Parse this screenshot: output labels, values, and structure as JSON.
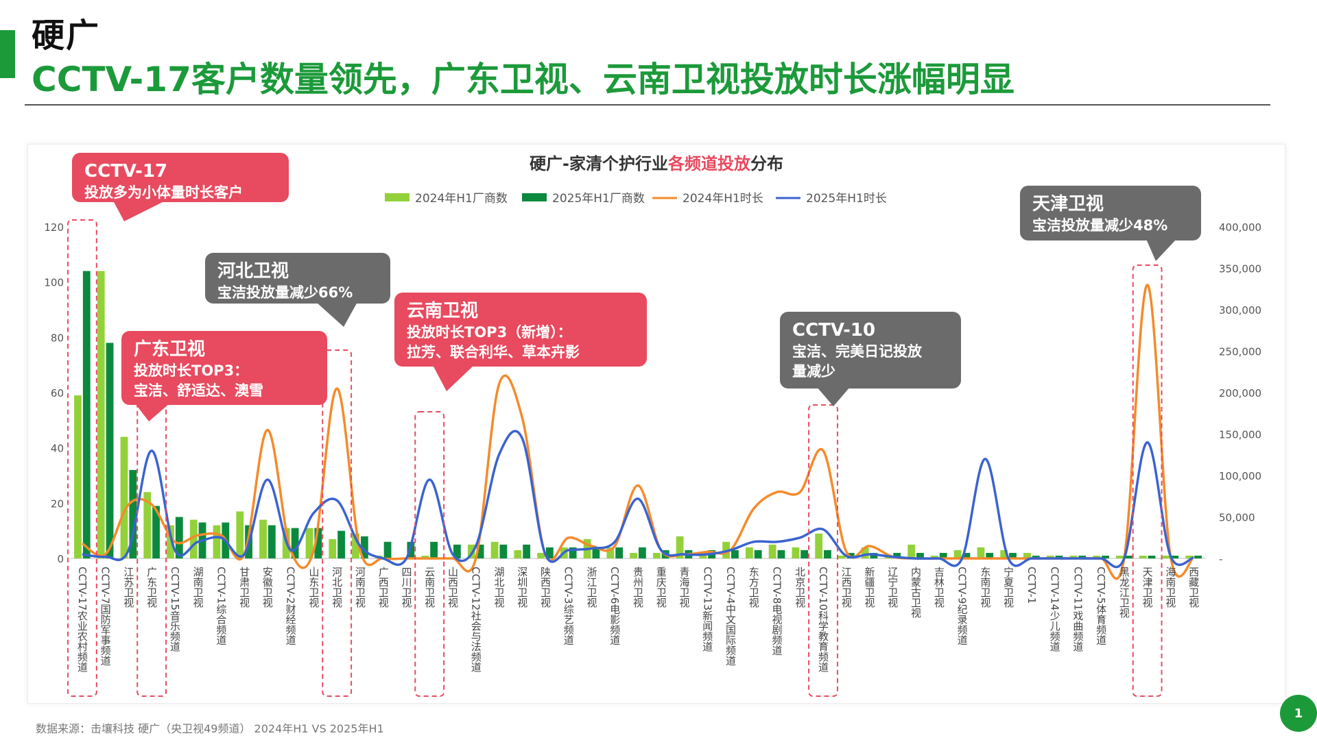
{
  "header": {
    "kicker": "硬广",
    "title": "CCTV-17客户数量领先，广东卫视、云南卫视投放时长涨幅明显"
  },
  "chart_data": {
    "type": "bar",
    "title_parts": [
      "硬广-家清个护行业",
      "各频道投放",
      "分布"
    ],
    "legend": [
      "2024年H1厂商数",
      "2025年H1厂商数",
      "2024年H1时长",
      "2025年H1时长"
    ],
    "colors": {
      "bar2024": "#93d13a",
      "bar2025": "#0b8a3e",
      "line2024": "#f58a2a",
      "line2025": "#3a63cf",
      "highlight": "#e84a5f"
    },
    "y_left": {
      "min": 0,
      "max": 120,
      "ticks": [
        "0",
        "20",
        "40",
        "60",
        "80",
        "100",
        "120"
      ]
    },
    "y_right": {
      "min": 0,
      "max": 400000,
      "ticks": [
        "-",
        "50,000",
        "100,000",
        "150,000",
        "200,000",
        "250,000",
        "300,000",
        "350,000",
        "400,000"
      ]
    },
    "categories": [
      "CCTV-17农业农村频道",
      "CCTV-7国防军事频道",
      "江苏卫视",
      "广东卫视",
      "CCTV-15音乐频道",
      "湖南卫视",
      "CCTV-1综合频道",
      "甘肃卫视",
      "安徽卫视",
      "CCTV-2财经频道",
      "山东卫视",
      "河北卫视",
      "河南卫视",
      "广西卫视",
      "四川卫视",
      "云南卫视",
      "山西卫视",
      "CCTV-12社会与法频道",
      "湖北卫视",
      "深圳卫视",
      "陕西卫视",
      "CCTV-3综艺频道",
      "浙江卫视",
      "CCTV-6电影频道",
      "贵州卫视",
      "重庆卫视",
      "青海卫视",
      "CCTV-13新闻频道",
      "CCTV-4中文国际频道",
      "东方卫视",
      "CCTV-8电视剧频道",
      "北京卫视",
      "CCTV-10科学教育频道",
      "江西卫视",
      "新疆卫视",
      "辽宁卫视",
      "内蒙古卫视",
      "吉林卫视",
      "CCTV-9纪录频道",
      "东南卫视",
      "宁夏卫视",
      "CCTV-1",
      "CCTV-14少儿频道",
      "CCTV-11戏曲频道",
      "CCTV-5体育频道",
      "黑龙江卫视",
      "天津卫视",
      "海南卫视",
      "西藏卫视"
    ],
    "series": [
      {
        "name": "2024年H1厂商数",
        "kind": "bar",
        "values": [
          59,
          104,
          44,
          24,
          12,
          14,
          12,
          17,
          14,
          11,
          11,
          7,
          9,
          1,
          0,
          1,
          0,
          5,
          6,
          3,
          2,
          4,
          7,
          4,
          2,
          2,
          8,
          2,
          6,
          4,
          5,
          4,
          9,
          1,
          4,
          1,
          5,
          1,
          3,
          4,
          3,
          2,
          1,
          1,
          1,
          1,
          1,
          1,
          1
        ]
      },
      {
        "name": "2025年H1厂商数",
        "kind": "bar",
        "values": [
          104,
          78,
          32,
          19,
          15,
          13,
          13,
          12,
          12,
          11,
          11,
          10,
          8,
          6,
          6,
          6,
          5,
          5,
          5,
          5,
          4,
          4,
          4,
          4,
          4,
          3,
          3,
          3,
          3,
          3,
          3,
          3,
          3,
          2,
          2,
          2,
          2,
          2,
          2,
          2,
          2,
          1,
          1,
          1,
          1,
          1,
          1,
          1,
          1
        ]
      },
      {
        "name": "2024年H1时长",
        "kind": "line",
        "values": [
          18000,
          5000,
          65000,
          65000,
          20000,
          28000,
          28000,
          5000,
          155000,
          10000,
          10000,
          205000,
          10000,
          0,
          0,
          0,
          0,
          0,
          210000,
          170000,
          5000,
          25000,
          15000,
          15000,
          88000,
          10000,
          5000,
          8000,
          10000,
          60000,
          80000,
          80000,
          130000,
          8000,
          15000,
          2000,
          0,
          0,
          0,
          0,
          0,
          0,
          0,
          0,
          0,
          0,
          330000,
          3000,
          1000
        ]
      },
      {
        "name": "2025年H1时长",
        "kind": "line",
        "values": [
          5000,
          2000,
          10000,
          130000,
          10000,
          20000,
          25000,
          5000,
          95000,
          10000,
          55000,
          70000,
          15000,
          0,
          0,
          95000,
          5000,
          15000,
          125000,
          145000,
          5000,
          10000,
          12000,
          20000,
          72000,
          10000,
          5000,
          5000,
          10000,
          20000,
          20000,
          25000,
          35000,
          3000,
          5000,
          2000,
          0,
          0,
          0,
          120000,
          0,
          0,
          0,
          0,
          0,
          0,
          140000,
          3000,
          1000
        ]
      }
    ],
    "highlight_indices": [
      0,
      3,
      11,
      15,
      32,
      46
    ]
  },
  "callouts": [
    {
      "id": "cctv17",
      "title": "CCTV-17",
      "lines": [
        "投放多为小体量时长客户"
      ],
      "color": "red"
    },
    {
      "id": "hebei",
      "title": "河北卫视",
      "lines": [
        "宝洁投放量减少66%"
      ],
      "color": "gray"
    },
    {
      "id": "guangdong",
      "title": "广东卫视",
      "lines": [
        "投放时长TOP3：",
        "宝洁、舒适达、澳雪"
      ],
      "color": "red"
    },
    {
      "id": "yunnan",
      "title": "云南卫视",
      "lines": [
        "投放时长TOP3（新增）：",
        "拉芳、联合利华、草本卉影"
      ],
      "color": "red"
    },
    {
      "id": "cctv10",
      "title": "CCTV-10",
      "lines": [
        "宝洁、完美日记投放",
        "量减少"
      ],
      "color": "gray"
    },
    {
      "id": "tianjin",
      "title": "天津卫视",
      "lines": [
        "宝洁投放量减少48%"
      ],
      "color": "gray"
    }
  ],
  "footer": {
    "source": "数据来源：击壤科技 硬广（央卫视49频道） 2024年H1 VS 2025年H1"
  },
  "page_number": "1"
}
